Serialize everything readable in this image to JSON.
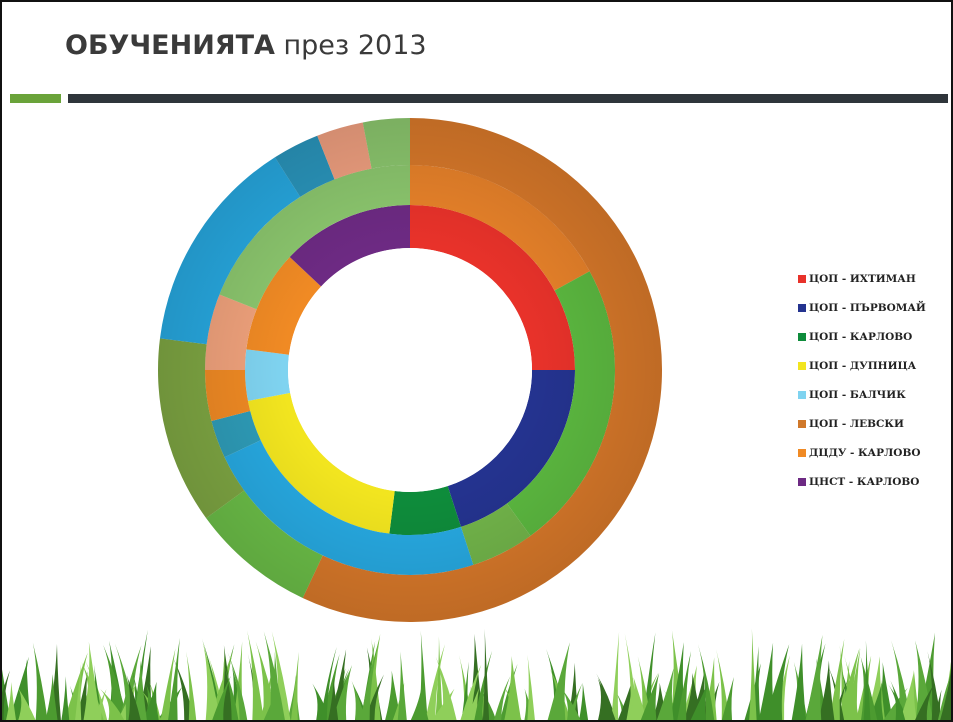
{
  "slide": {
    "title_bold": "ОБУЧЕНИЯТА",
    "title_rest": " през 2013",
    "accent_green": "#6aa33a",
    "accent_dark": "#2f353b"
  },
  "chart_data": {
    "type": "pie",
    "subtype": "doughnut",
    "title": "",
    "legend": {
      "position": "right",
      "entries": [
        {
          "label": "ЦОП - ИХТИМАН",
          "color": "#e8322a"
        },
        {
          "label": "ЦОП - ПЪРВОМАЙ",
          "color": "#24338f"
        },
        {
          "label": "ЦОП - КАРЛОВО",
          "color": "#0e8c3b"
        },
        {
          "label": "ЦОП - ДУПНИЦА",
          "color": "#f2e51f"
        },
        {
          "label": "ЦОП - БАЛЧИК",
          "color": "#7fd3f0"
        },
        {
          "label": "ЦОП - ЛЕВСКИ",
          "color": "#d0782a"
        },
        {
          "label": "ДЦДУ - КАРЛОВО",
          "color": "#f08a24"
        },
        {
          "label": "ЦНСТ - КАРЛОВО",
          "color": "#6d2a83"
        }
      ]
    },
    "rings": [
      {
        "ring": "inner",
        "slices": [
          {
            "color": "#e8322a",
            "percent": 25
          },
          {
            "color": "#24338f",
            "percent": 20
          },
          {
            "color": "#0e8c3b",
            "percent": 7
          },
          {
            "color": "#f2e51f",
            "percent": 20
          },
          {
            "color": "#7fd3f0",
            "percent": 5
          },
          {
            "color": "#f08a24",
            "percent": 10
          },
          {
            "color": "#6d2a83",
            "percent": 13
          }
        ]
      },
      {
        "ring": "middle",
        "slices": [
          {
            "color": "#e8822a",
            "percent": 17
          },
          {
            "color": "#5cb940",
            "percent": 23
          },
          {
            "color": "#72b54a",
            "percent": 5
          },
          {
            "color": "#27a9e1",
            "percent": 23
          },
          {
            "color": "#2e9cb8",
            "percent": 3
          },
          {
            "color": "#f08a24",
            "percent": 4
          },
          {
            "color": "#f0a27c",
            "percent": 6
          },
          {
            "color": "#8cc76e",
            "percent": 19
          }
        ]
      },
      {
        "ring": "outer",
        "slices": [
          {
            "color": "#d9792a",
            "percent": 57
          },
          {
            "color": "#6cbf48",
            "percent": 8
          },
          {
            "color": "#7fa743",
            "percent": 12
          },
          {
            "color": "#27a9e1",
            "percent": 14
          },
          {
            "color": "#2a96bd",
            "percent": 3
          },
          {
            "color": "#f0a080",
            "percent": 3
          },
          {
            "color": "#8cc76e",
            "percent": 3
          }
        ]
      }
    ]
  }
}
